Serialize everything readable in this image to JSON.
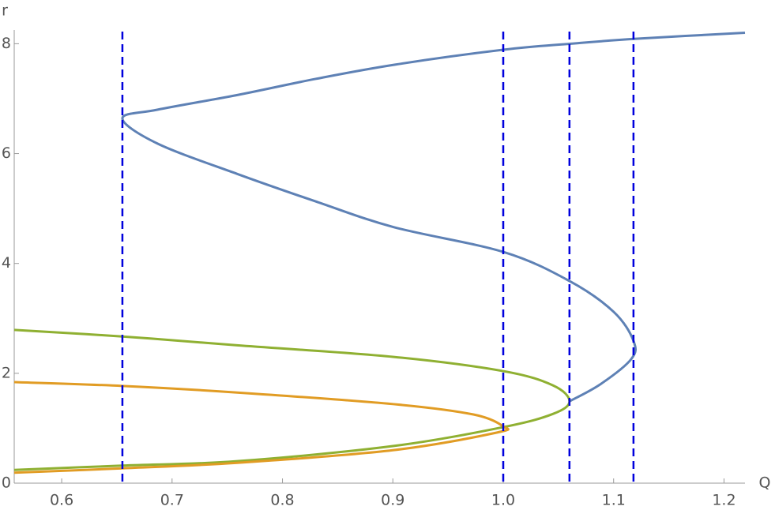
{
  "chart_data": {
    "type": "line",
    "x_label": "Q",
    "y_label": "r",
    "xlim": [
      0.557,
      1.219
    ],
    "ylim": [
      0,
      8.25
    ],
    "xticks": [
      0.6,
      0.7,
      0.8,
      0.9,
      {
        "value": 1.0,
        "label": "1.0"
      },
      1.1,
      1.2
    ],
    "yticks": [
      0,
      2,
      4,
      6,
      8
    ],
    "vlines": [
      0.655,
      1.0,
      1.06,
      1.118
    ],
    "vline_color": "#0000dd",
    "series": [
      {
        "color": "#5e81b5",
        "x": [
          1.219,
          1.12,
          1.061,
          1.0,
          0.902,
          0.83,
          0.76,
          0.687,
          0.655,
          0.687,
          0.759,
          0.83,
          0.901,
          1.0,
          1.06,
          1.1,
          1.118,
          1.116,
          1.088,
          1.06
        ],
        "values": [
          8.2,
          8.09,
          8.0,
          7.89,
          7.62,
          7.36,
          7.07,
          6.8,
          6.64,
          6.18,
          5.63,
          5.13,
          4.66,
          4.21,
          3.68,
          3.12,
          2.59,
          2.26,
          1.8,
          1.49
        ]
      },
      {
        "color": "#8fb032",
        "x": [
          0.557,
          0.655,
          0.759,
          0.9,
          1.0,
          1.045,
          1.06,
          1.045,
          1.0,
          0.9,
          0.759,
          0.655,
          0.557
        ],
        "values": [
          2.79,
          2.67,
          2.51,
          2.3,
          2.04,
          1.78,
          1.49,
          1.26,
          1.02,
          0.675,
          0.4,
          0.32,
          0.24
        ]
      },
      {
        "color": "#e19c24",
        "x": [
          0.557,
          0.655,
          0.759,
          0.9,
          0.973,
          1.0,
          0.994,
          0.9,
          0.759,
          0.655,
          0.557
        ],
        "values": [
          1.84,
          1.77,
          1.65,
          1.44,
          1.25,
          1.03,
          0.92,
          0.6,
          0.37,
          0.27,
          0.19
        ]
      }
    ]
  }
}
